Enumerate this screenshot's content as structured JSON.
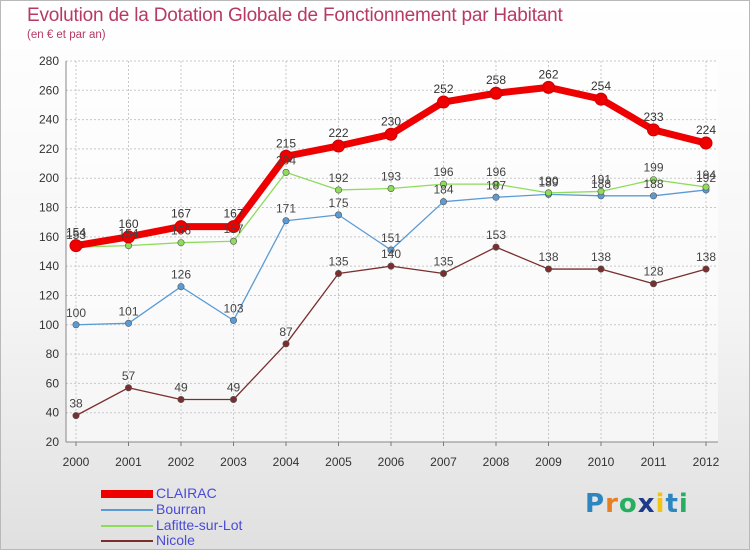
{
  "title": "Evolution de la Dotation Globale de Fonctionnement par Habitant",
  "subtitle": "(en € et par an)",
  "logo": {
    "text": "Proxiti",
    "letters": [
      "P",
      "r",
      "o",
      "x",
      "i",
      "t",
      "i"
    ],
    "colors": [
      "#2e86c1",
      "#e67e22",
      "#27ae60",
      "#1f3a8a",
      "#f1c40f",
      "#2e86c1",
      "#27ae60"
    ]
  },
  "chart_data": {
    "type": "line",
    "title": "Evolution de la Dotation Globale de Fonctionnement par Habitant",
    "ylabel": "(en € et par an)",
    "xlabel": "",
    "ylim": [
      20,
      280
    ],
    "yticks": [
      20,
      40,
      60,
      80,
      100,
      120,
      140,
      160,
      180,
      200,
      220,
      240,
      260,
      280
    ],
    "grid": true,
    "x": [
      "2000",
      "2001",
      "2002",
      "2003",
      "2004",
      "2005",
      "2006",
      "2007",
      "2008",
      "2009",
      "2010",
      "2011",
      "2012"
    ],
    "series": [
      {
        "name": "Nicole",
        "color": "#7a2e2e",
        "values": [
          38,
          57,
          49,
          49,
          87,
          135,
          140,
          135,
          153,
          138,
          138,
          128,
          138
        ]
      },
      {
        "name": "Bourran",
        "color": "#5b9bd5",
        "values": [
          100,
          101,
          126,
          103,
          171,
          175,
          151,
          184,
          187,
          189,
          188,
          188,
          192
        ]
      },
      {
        "name": "Lafitte-sur-Lot",
        "color": "#8fdb5a",
        "values": [
          153,
          154,
          156,
          157,
          204,
          192,
          193,
          196,
          196,
          190,
          191,
          199,
          194
        ]
      },
      {
        "name": "CLAIRAC",
        "color": "#ee0000",
        "values": [
          154,
          160,
          167,
          167,
          215,
          222,
          230,
          252,
          258,
          262,
          254,
          233,
          224
        ]
      }
    ],
    "legend": [
      {
        "name": "CLAIRAC",
        "color": "#ee0000"
      },
      {
        "name": "Bourran",
        "color": "#5b9bd5"
      },
      {
        "name": "Lafitte-sur-Lot",
        "color": "#8fdb5a"
      },
      {
        "name": "Nicole",
        "color": "#7a2e2e"
      }
    ]
  }
}
